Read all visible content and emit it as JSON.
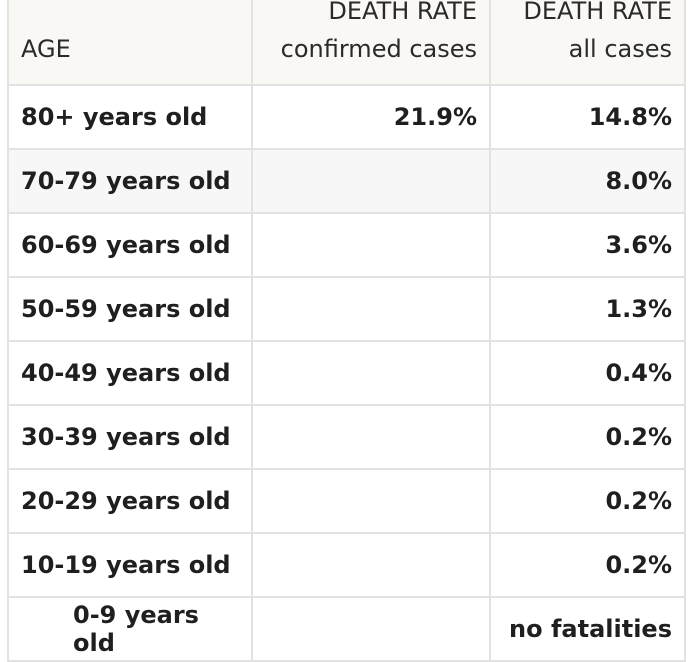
{
  "table": {
    "headers": [
      {
        "lines": [
          "AGE"
        ]
      },
      {
        "lines": [
          "DEATH RATE",
          "confirmed cases"
        ]
      },
      {
        "lines": [
          "DEATH RATE",
          "all cases"
        ]
      }
    ],
    "rows": [
      {
        "age": "80+ years old",
        "confirmed": "21.9%",
        "all": "14.8%"
      },
      {
        "age": "70-79 years old",
        "confirmed": "",
        "all": "8.0%"
      },
      {
        "age": "60-69 years old",
        "confirmed": "",
        "all": "3.6%"
      },
      {
        "age": "50-59 years old",
        "confirmed": "",
        "all": "1.3%"
      },
      {
        "age": "40-49 years old",
        "confirmed": "",
        "all": "0.4%"
      },
      {
        "age": "30-39 years old",
        "confirmed": "",
        "all": "0.2%"
      },
      {
        "age": "20-29 years old",
        "confirmed": "",
        "all": "0.2%"
      },
      {
        "age": "10-19 years old",
        "confirmed": "",
        "all": "0.2%"
      },
      {
        "age": "0-9 years old",
        "confirmed": "",
        "all": "no fatalities"
      }
    ]
  }
}
